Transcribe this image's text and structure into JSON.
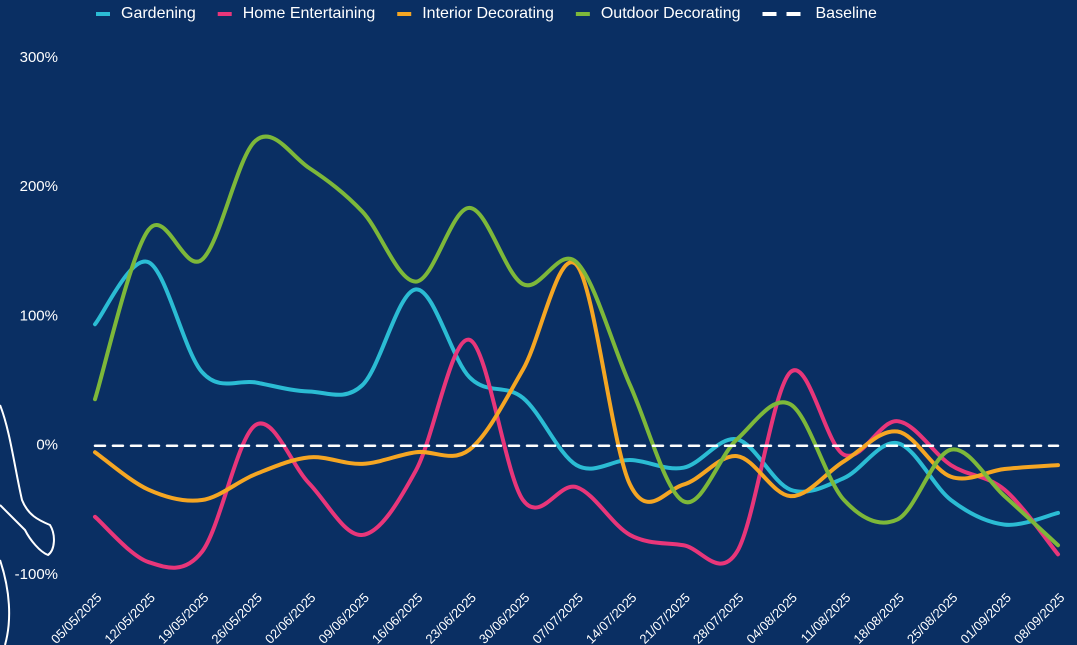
{
  "chart_data": {
    "type": "line",
    "categories": [
      "05/05/2025",
      "12/05/2025",
      "19/05/2025",
      "26/05/2025",
      "02/06/2025",
      "09/06/2025",
      "16/06/2025",
      "23/06/2025",
      "30/06/2025",
      "07/07/2025",
      "14/07/2025",
      "21/07/2025",
      "28/07/2025",
      "04/08/2025",
      "11/08/2025",
      "18/08/2025",
      "25/08/2025",
      "01/09/2025",
      "08/09/2025"
    ],
    "series": [
      {
        "name": "Gardening",
        "color": "#2bbcd4",
        "values": [
          94,
          142,
          57,
          49,
          42,
          47,
          121,
          53,
          37,
          -15,
          -11,
          -17,
          5,
          -34,
          -25,
          2,
          -42,
          -61,
          -52
        ]
      },
      {
        "name": "Home Entertaining",
        "color": "#e8367a",
        "values": [
          -55,
          -90,
          -82,
          16,
          -29,
          -69,
          -19,
          82,
          -42,
          -32,
          -69,
          -77,
          -82,
          57,
          -7,
          19,
          -15,
          -34,
          -84
        ]
      },
      {
        "name": "Interior Decorating",
        "color": "#f5a623",
        "values": [
          -5,
          -34,
          -42,
          -22,
          -9,
          -14,
          -5,
          -3,
          59,
          140,
          -30,
          -30,
          -8,
          -39,
          -12,
          11,
          -24,
          -18,
          -15
        ]
      },
      {
        "name": "Outdoor Decorating",
        "color": "#7db83a",
        "values": [
          36,
          167,
          144,
          236,
          215,
          181,
          127,
          184,
          125,
          142,
          47,
          -43,
          5,
          32,
          -42,
          -57,
          -3,
          -39,
          -77
        ]
      },
      {
        "name": "Baseline",
        "color": "#ffffff",
        "dashed": true,
        "values": [
          0,
          0,
          0,
          0,
          0,
          0,
          0,
          0,
          0,
          0,
          0,
          0,
          0,
          0,
          0,
          0,
          0,
          0,
          0
        ]
      }
    ],
    "ylim": [
      -100,
      300
    ],
    "yticks": [
      {
        "value": -100,
        "label": "-100%"
      },
      {
        "value": 0,
        "label": "0%"
      },
      {
        "value": 100,
        "label": "100%"
      },
      {
        "value": 200,
        "label": "200%"
      },
      {
        "value": 300,
        "label": "300%"
      }
    ],
    "grid": false,
    "legend": "top"
  }
}
